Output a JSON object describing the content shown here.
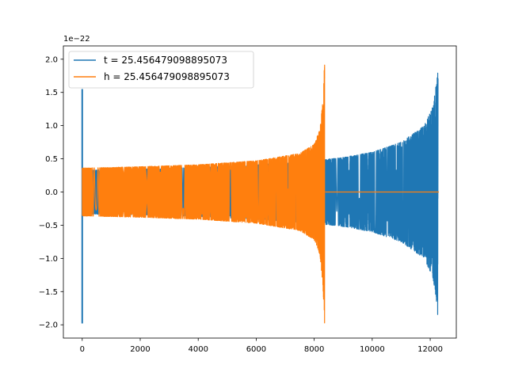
{
  "chart_data": {
    "type": "line",
    "title": "",
    "xlabel": "",
    "ylabel": "",
    "offset_text": "1e−22",
    "xlim": [
      -650,
      12900
    ],
    "ylim": [
      -2.2,
      2.2
    ],
    "x_ticks": [
      0,
      2000,
      4000,
      6000,
      8000,
      10000,
      12000
    ],
    "x_tick_labels": [
      "0",
      "2000",
      "4000",
      "6000",
      "8000",
      "10000",
      "12000"
    ],
    "y_ticks": [
      -2.0,
      -1.5,
      -1.0,
      -0.5,
      0.0,
      0.5,
      1.0,
      1.5,
      2.0
    ],
    "y_tick_labels": [
      "−2.0",
      "−1.5",
      "−1.0",
      "−0.5",
      "0.0",
      "0.5",
      "1.0",
      "1.5",
      "2.0"
    ],
    "grid": false,
    "legend_position": "top-left",
    "series": [
      {
        "name": "t = 25.456479098895073",
        "color": "#1f77b4",
        "x_range": [
          0,
          12300
        ],
        "chirp_start_x": 0,
        "chirp_end_x": 12270,
        "envelope": [
          {
            "x": 0,
            "y": 0.33
          },
          {
            "x": 2000,
            "y": 0.345
          },
          {
            "x": 4000,
            "y": 0.37
          },
          {
            "x": 6000,
            "y": 0.41
          },
          {
            "x": 8000,
            "y": 0.47
          },
          {
            "x": 9000,
            "y": 0.52
          },
          {
            "x": 10000,
            "y": 0.6
          },
          {
            "x": 11000,
            "y": 0.75
          },
          {
            "x": 11800,
            "y": 1.0
          },
          {
            "x": 12100,
            "y": 1.3
          },
          {
            "x": 12250,
            "y": 1.75
          },
          {
            "x": 12270,
            "y": 2.0
          }
        ],
        "leading_spike": {
          "x": 0,
          "max": 1.55,
          "min": -1.98
        }
      },
      {
        "name": "h = 25.456479098895073",
        "color": "#ff7f0e",
        "x_range": [
          0,
          12300
        ],
        "chirp_start_x": 0,
        "chirp_end_x": 8360,
        "envelope": [
          {
            "x": 0,
            "y": 0.36
          },
          {
            "x": 2000,
            "y": 0.38
          },
          {
            "x": 4000,
            "y": 0.41
          },
          {
            "x": 6000,
            "y": 0.47
          },
          {
            "x": 7500,
            "y": 0.58
          },
          {
            "x": 8000,
            "y": 0.72
          },
          {
            "x": 8200,
            "y": 0.95
          },
          {
            "x": 8300,
            "y": 1.4
          },
          {
            "x": 8360,
            "y": 2.0
          }
        ],
        "flat_after": {
          "from_x": 8380,
          "to_x": 12300,
          "y": 0.0
        }
      }
    ]
  }
}
